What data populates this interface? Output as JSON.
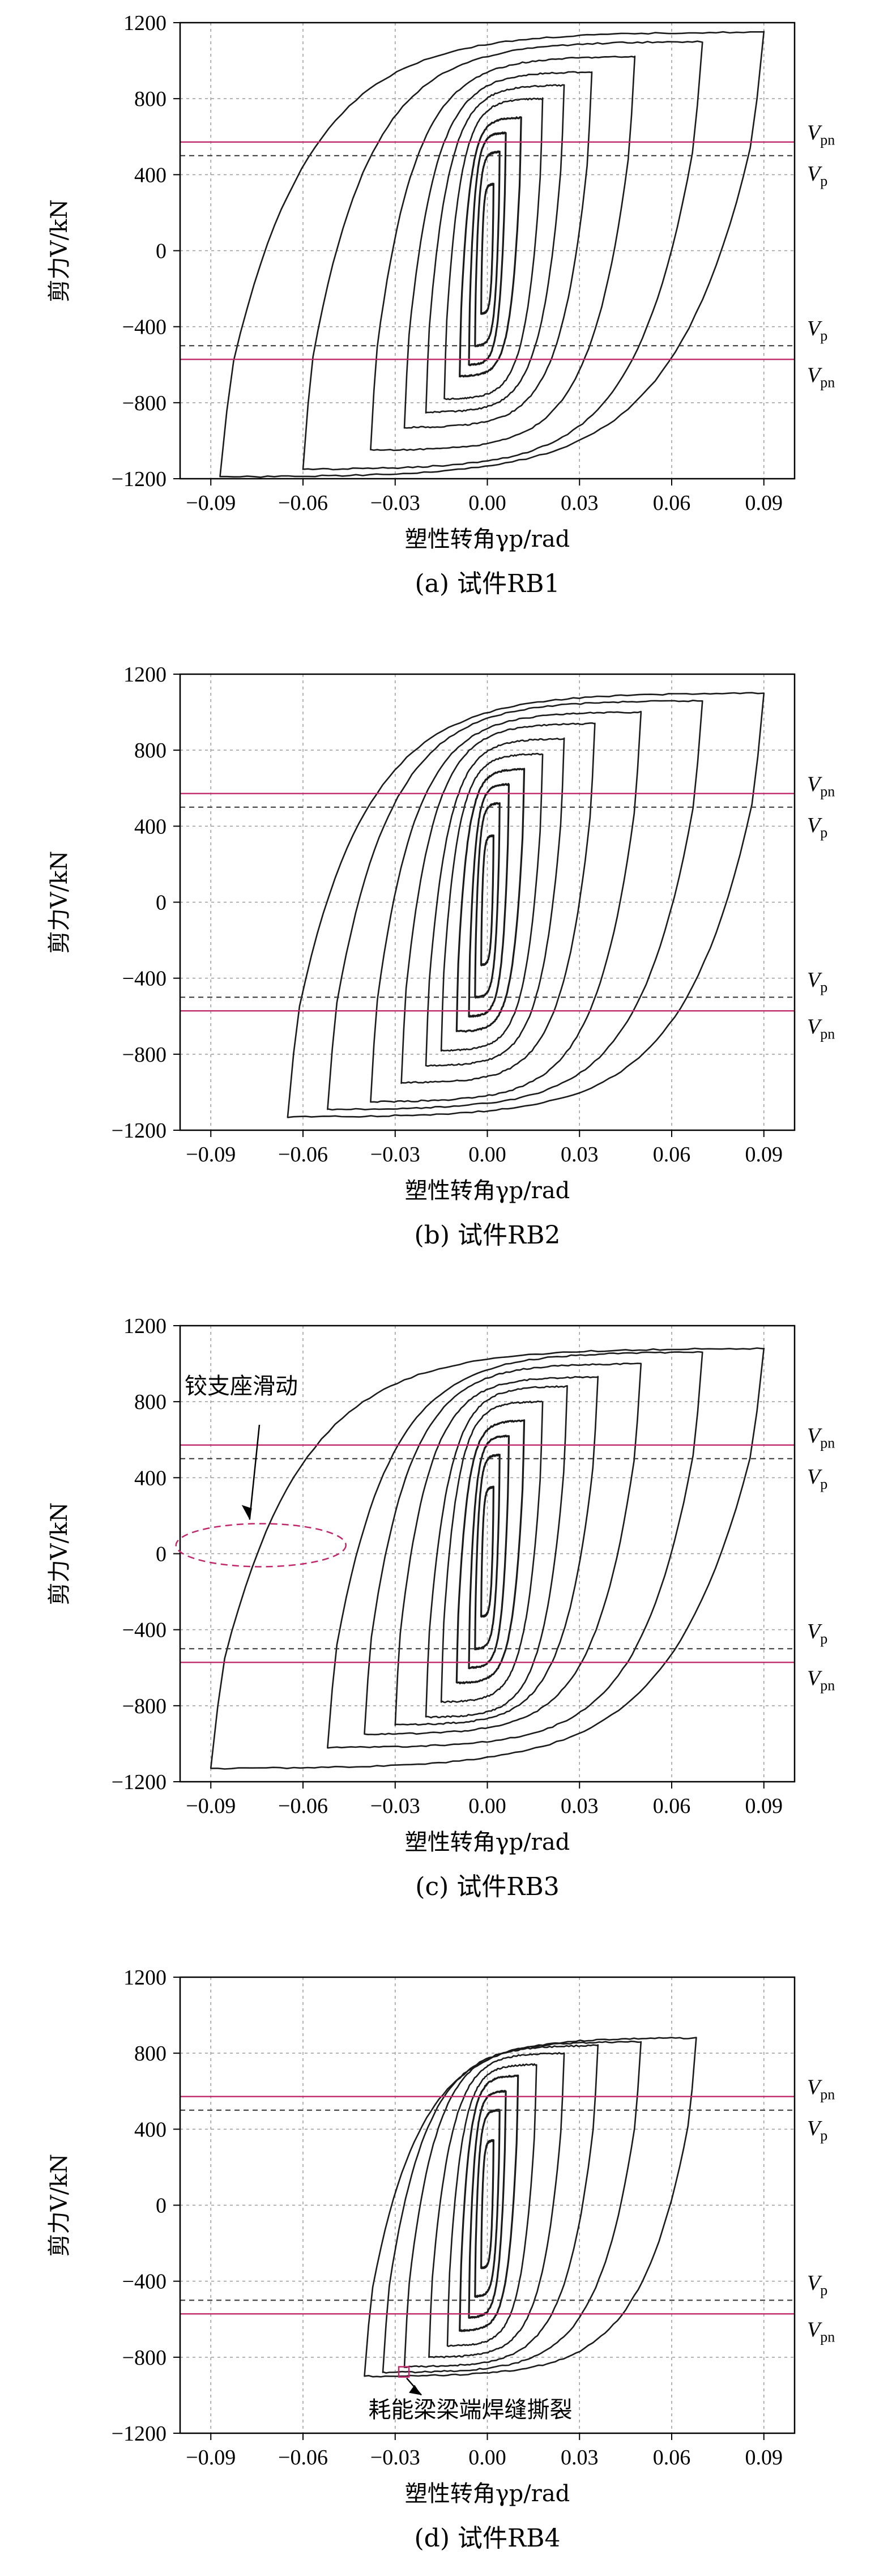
{
  "colors": {
    "reference_line": "#c0266a",
    "curve": "#1a1a1a",
    "grid": "#9a9a9a"
  },
  "chart_data": [
    {
      "panel": "a",
      "type": "line",
      "caption": "(a) 试件RB1",
      "xlabel": "塑性转角γp/rad",
      "ylabel": "剪力V/kN",
      "xlim": [
        -0.1,
        0.1
      ],
      "ylim": [
        -1200,
        1200
      ],
      "xticks": [
        "-0.09",
        "-0.06",
        "-0.03",
        "0.00",
        "0.03",
        "0.06",
        "0.09"
      ],
      "yticks": [
        "1200",
        "800",
        "400",
        "0",
        "-400",
        "-800",
        "-1200"
      ],
      "grid": true,
      "reference_lines": [
        {
          "label": "Vpn",
          "base": "V",
          "sub": "pn",
          "value": 572,
          "style": "solid"
        },
        {
          "label": "Vp",
          "base": "V",
          "sub": "p",
          "value": 500,
          "style": "dashed"
        },
        {
          "label": "Vp",
          "base": "V",
          "sub": "p",
          "value": -500,
          "style": "dashed"
        },
        {
          "label": "Vpn",
          "base": "V",
          "sub": "pn",
          "value": -572,
          "style": "solid"
        }
      ],
      "loops": [
        {
          "xmin": -0.002,
          "xmax": 0.002,
          "vmax": 350,
          "vmin": -330
        },
        {
          "xmin": -0.004,
          "xmax": 0.004,
          "vmax": 520,
          "vmin": -500
        },
        {
          "xmin": -0.006,
          "xmax": 0.006,
          "vmax": 620,
          "vmin": -600
        },
        {
          "xmin": -0.009,
          "xmax": 0.011,
          "vmax": 700,
          "vmin": -660
        },
        {
          "xmin": -0.014,
          "xmax": 0.018,
          "vmax": 800,
          "vmin": -780
        },
        {
          "xmin": -0.02,
          "xmax": 0.025,
          "vmax": 870,
          "vmin": -850
        },
        {
          "xmin": -0.027,
          "xmax": 0.034,
          "vmax": 940,
          "vmin": -930
        },
        {
          "xmin": -0.038,
          "xmax": 0.048,
          "vmax": 1020,
          "vmin": -1050
        },
        {
          "xmin": -0.06,
          "xmax": 0.07,
          "vmax": 1100,
          "vmin": -1150
        },
        {
          "xmin": -0.087,
          "xmax": 0.09,
          "vmax": 1150,
          "vmin": -1190
        }
      ],
      "annotations": []
    },
    {
      "panel": "b",
      "type": "line",
      "caption": "(b) 试件RB2",
      "xlabel": "塑性转角γp/rad",
      "ylabel": "剪力V/kN",
      "xlim": [
        -0.1,
        0.1
      ],
      "ylim": [
        -1200,
        1200
      ],
      "xticks": [
        "-0.09",
        "-0.06",
        "-0.03",
        "0.00",
        "0.03",
        "0.06",
        "0.09"
      ],
      "yticks": [
        "1200",
        "800",
        "400",
        "0",
        "-400",
        "-800",
        "-1200"
      ],
      "grid": true,
      "reference_lines": [
        {
          "label": "Vpn",
          "base": "V",
          "sub": "pn",
          "value": 572,
          "style": "solid"
        },
        {
          "label": "Vp",
          "base": "V",
          "sub": "p",
          "value": 500,
          "style": "dashed"
        },
        {
          "label": "Vp",
          "base": "V",
          "sub": "p",
          "value": -500,
          "style": "dashed"
        },
        {
          "label": "Vpn",
          "base": "V",
          "sub": "pn",
          "value": -572,
          "style": "solid"
        }
      ],
      "loops": [
        {
          "xmin": -0.002,
          "xmax": 0.002,
          "vmax": 350,
          "vmin": -330
        },
        {
          "xmin": -0.004,
          "xmax": 0.004,
          "vmax": 520,
          "vmin": -500
        },
        {
          "xmin": -0.006,
          "xmax": 0.007,
          "vmax": 620,
          "vmin": -600
        },
        {
          "xmin": -0.01,
          "xmax": 0.012,
          "vmax": 700,
          "vmin": -680
        },
        {
          "xmin": -0.015,
          "xmax": 0.018,
          "vmax": 780,
          "vmin": -780
        },
        {
          "xmin": -0.02,
          "xmax": 0.025,
          "vmax": 860,
          "vmin": -860
        },
        {
          "xmin": -0.028,
          "xmax": 0.035,
          "vmax": 940,
          "vmin": -950
        },
        {
          "xmin": -0.038,
          "xmax": 0.05,
          "vmax": 1000,
          "vmin": -1050
        },
        {
          "xmin": -0.052,
          "xmax": 0.07,
          "vmax": 1060,
          "vmin": -1090
        },
        {
          "xmin": -0.065,
          "xmax": 0.09,
          "vmax": 1100,
          "vmin": -1130
        }
      ],
      "annotations": []
    },
    {
      "panel": "c",
      "type": "line",
      "caption": "(c) 试件RB3",
      "xlabel": "塑性转角γp/rad",
      "ylabel": "剪力V/kN",
      "xlim": [
        -0.1,
        0.1
      ],
      "ylim": [
        -1200,
        1200
      ],
      "xticks": [
        "-0.09",
        "-0.06",
        "-0.03",
        "0.00",
        "0.03",
        "0.06",
        "0.09"
      ],
      "yticks": [
        "1200",
        "800",
        "400",
        "0",
        "-400",
        "-800",
        "-1200"
      ],
      "grid": true,
      "reference_lines": [
        {
          "label": "Vpn",
          "base": "V",
          "sub": "pn",
          "value": 572,
          "style": "solid"
        },
        {
          "label": "Vp",
          "base": "V",
          "sub": "p",
          "value": 500,
          "style": "dashed"
        },
        {
          "label": "Vp",
          "base": "V",
          "sub": "p",
          "value": -500,
          "style": "dashed"
        },
        {
          "label": "Vpn",
          "base": "V",
          "sub": "pn",
          "value": -572,
          "style": "solid"
        }
      ],
      "loops": [
        {
          "xmin": -0.002,
          "xmax": 0.002,
          "vmax": 350,
          "vmin": -330
        },
        {
          "xmin": -0.004,
          "xmax": 0.004,
          "vmax": 520,
          "vmin": -500
        },
        {
          "xmin": -0.006,
          "xmax": 0.007,
          "vmax": 620,
          "vmin": -600
        },
        {
          "xmin": -0.01,
          "xmax": 0.012,
          "vmax": 700,
          "vmin": -680
        },
        {
          "xmin": -0.015,
          "xmax": 0.018,
          "vmax": 800,
          "vmin": -780
        },
        {
          "xmin": -0.02,
          "xmax": 0.026,
          "vmax": 880,
          "vmin": -860
        },
        {
          "xmin": -0.03,
          "xmax": 0.036,
          "vmax": 930,
          "vmin": -900
        },
        {
          "xmin": -0.04,
          "xmax": 0.05,
          "vmax": 1000,
          "vmin": -950
        },
        {
          "xmin": -0.052,
          "xmax": 0.07,
          "vmax": 1060,
          "vmin": -1020
        },
        {
          "xmin": -0.09,
          "xmax": 0.09,
          "vmax": 1080,
          "vmin": -1130
        }
      ],
      "annotations": [
        {
          "text": "铰支座滑动",
          "target_x": -0.07,
          "target_y": 30
        }
      ]
    },
    {
      "panel": "d",
      "type": "line",
      "caption": "(d) 试件RB4",
      "xlabel": "塑性转角γp/rad",
      "ylabel": "剪力V/kN",
      "xlim": [
        -0.1,
        0.1
      ],
      "ylim": [
        -1200,
        1200
      ],
      "xticks": [
        "-0.09",
        "-0.06",
        "-0.03",
        "0.00",
        "0.03",
        "0.06",
        "0.09"
      ],
      "yticks": [
        "1200",
        "800",
        "400",
        "0",
        "-400",
        "-800",
        "-1200"
      ],
      "grid": true,
      "reference_lines": [
        {
          "label": "Vpn",
          "base": "V",
          "sub": "pn",
          "value": 572,
          "style": "solid"
        },
        {
          "label": "Vp",
          "base": "V",
          "sub": "p",
          "value": 500,
          "style": "dashed"
        },
        {
          "label": "Vp",
          "base": "V",
          "sub": "p",
          "value": -500,
          "style": "dashed"
        },
        {
          "label": "Vpn",
          "base": "V",
          "sub": "pn",
          "value": -572,
          "style": "solid"
        }
      ],
      "loops": [
        {
          "xmin": -0.002,
          "xmax": 0.002,
          "vmax": 340,
          "vmin": -330
        },
        {
          "xmin": -0.004,
          "xmax": 0.004,
          "vmax": 500,
          "vmin": -480
        },
        {
          "xmin": -0.006,
          "xmax": 0.006,
          "vmax": 600,
          "vmin": -590
        },
        {
          "xmin": -0.009,
          "xmax": 0.01,
          "vmax": 680,
          "vmin": -660
        },
        {
          "xmin": -0.013,
          "xmax": 0.016,
          "vmax": 740,
          "vmin": -740
        },
        {
          "xmin": -0.019,
          "xmax": 0.025,
          "vmax": 800,
          "vmin": -800
        },
        {
          "xmin": -0.027,
          "xmax": 0.036,
          "vmax": 840,
          "vmin": -850
        },
        {
          "xmin": -0.034,
          "xmax": 0.05,
          "vmax": 860,
          "vmin": -880
        },
        {
          "xmin": -0.04,
          "xmax": 0.068,
          "vmax": 880,
          "vmin": -900
        }
      ],
      "annotations": [
        {
          "text": "耗能梁梁端焊缝撕裂",
          "target_x": -0.027,
          "target_y": -880
        }
      ]
    }
  ]
}
